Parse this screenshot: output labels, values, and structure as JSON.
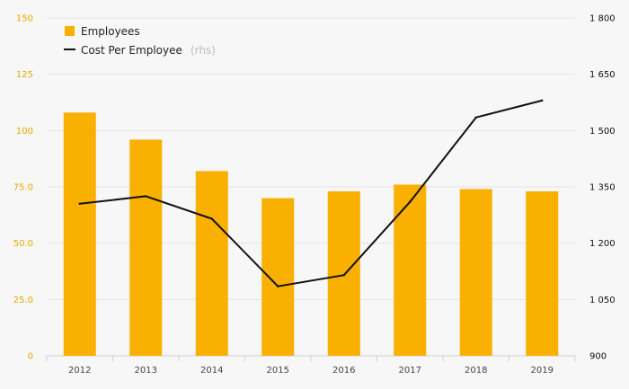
{
  "chart_data": {
    "type": "bar+line",
    "categories": [
      "2012",
      "2013",
      "2014",
      "2015",
      "2016",
      "2017",
      "2018",
      "2019"
    ],
    "series": [
      {
        "name": "Employees",
        "type": "bar",
        "axis": "left",
        "values": [
          108,
          96,
          82,
          70,
          73,
          76,
          74,
          73
        ],
        "color": "#f9b000"
      },
      {
        "name": "Cost Per Employee",
        "note": "(rhs)",
        "type": "line",
        "axis": "right",
        "values": [
          1305,
          1325,
          1265,
          1085,
          1115,
          1310,
          1535,
          1580
        ],
        "color": "#111111"
      }
    ],
    "left_axis": {
      "ylim": [
        0,
        150
      ],
      "ticks": [
        0,
        25,
        50,
        75,
        100,
        125,
        150
      ],
      "tick_labels": [
        "0",
        "25.0",
        "50.0",
        "75.0",
        "100",
        "125",
        "150"
      ],
      "color": "#e9a800"
    },
    "right_axis": {
      "ylim": [
        900,
        1800
      ],
      "ticks": [
        900,
        1050,
        1200,
        1350,
        1500,
        1650,
        1800
      ],
      "tick_labels": [
        "900",
        "1 050",
        "1 200",
        "1 350",
        "1 500",
        "1 650",
        "1 800"
      ],
      "color": "#111111"
    },
    "grid": true,
    "legend_position": "top-left"
  }
}
